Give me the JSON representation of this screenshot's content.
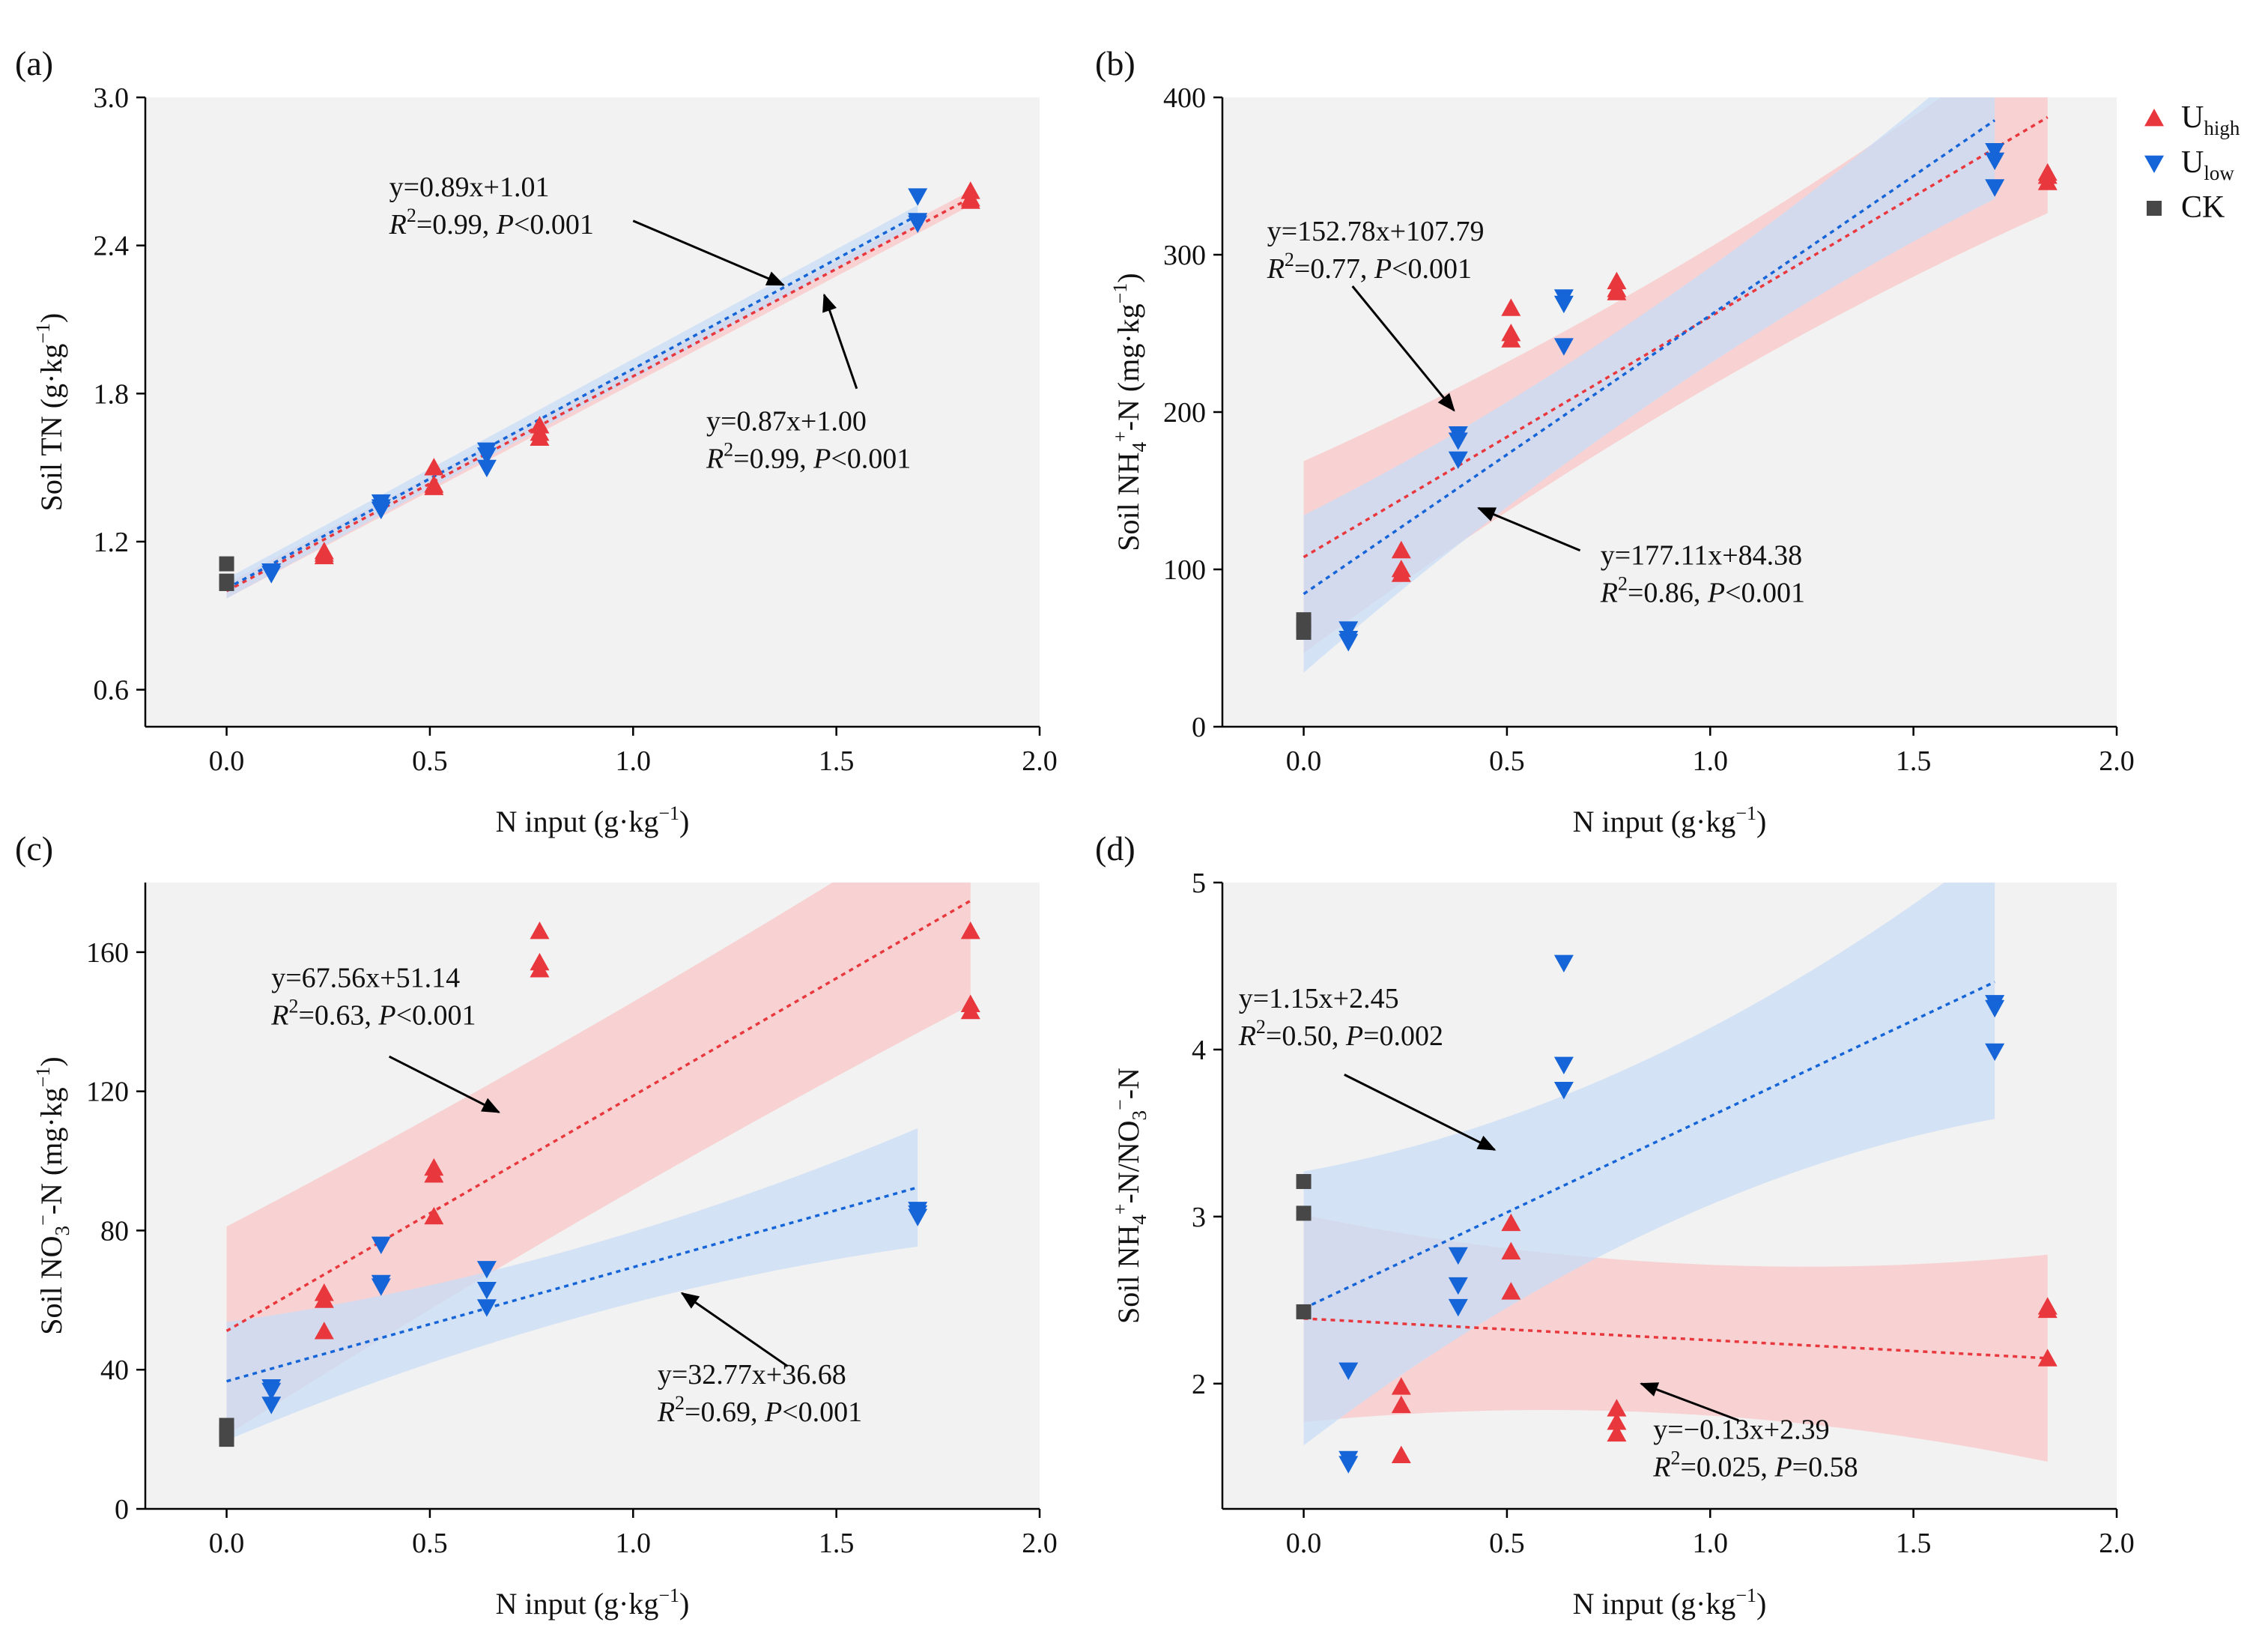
{
  "colors": {
    "u_high": "#e8383d",
    "u_low": "#1565d8",
    "ck": "#474747",
    "u_high_band": "#f9c7c7",
    "u_low_band": "#c8dcf6",
    "plot_bg": "#f2f2f2"
  },
  "legend": {
    "placement": "top-right",
    "u_high": "U",
    "u_high_sub": "high",
    "u_low": "U",
    "u_low_sub": "low",
    "ck": "CK"
  },
  "chart_data": [
    {
      "panel": "(a)",
      "type": "scatter",
      "xlabel": {
        "pre": "N input (g·kg",
        "sup": "−1",
        "post": ")"
      },
      "ylabel": {
        "pre": "Soil TN (g·kg",
        "sup": "−1",
        "post": ")"
      },
      "xlim": [
        -0.2,
        2.0
      ],
      "ylim": [
        0.45,
        3.0
      ],
      "xticks": [
        0,
        0.5,
        1,
        1.5,
        2
      ],
      "xtick_labels": [
        "0.0",
        "0.5",
        "1.0",
        "1.5",
        "2.0"
      ],
      "yticks": [
        0.6,
        1.2,
        1.8,
        2.4,
        3.0
      ],
      "ytick_labels": [
        "0.6",
        "1.2",
        "1.8",
        "2.4",
        "3.0"
      ],
      "series": [
        {
          "name": "U_high",
          "key": "u_high",
          "marker": "triangle-up",
          "x": [
            0.24,
            0.24,
            0.24,
            0.51,
            0.51,
            0.51,
            0.77,
            0.77,
            0.77,
            1.83,
            1.83,
            1.83
          ],
          "y": [
            1.14,
            1.16,
            1.15,
            1.5,
            1.43,
            1.42,
            1.67,
            1.62,
            1.64,
            2.59,
            2.62,
            2.58
          ]
        },
        {
          "name": "U_low",
          "key": "u_low",
          "marker": "triangle-down",
          "x": [
            0.11,
            0.11,
            0.11,
            0.38,
            0.38,
            0.38,
            0.64,
            0.64,
            0.64,
            1.7,
            1.7,
            1.7
          ],
          "y": [
            1.07,
            1.08,
            1.08,
            1.36,
            1.33,
            1.34,
            1.57,
            1.5,
            1.55,
            2.6,
            2.49,
            2.5
          ]
        },
        {
          "name": "CK",
          "key": "ck",
          "marker": "square",
          "x": [
            0,
            0,
            0
          ],
          "y": [
            1.11,
            1.04,
            1.03
          ]
        }
      ],
      "fits": [
        {
          "key": "u_high",
          "slope": 0.87,
          "intercept": 1.0,
          "x0": 0,
          "x1": 1.83,
          "band": [
            0.03,
            0.03
          ]
        },
        {
          "key": "u_low",
          "slope": 0.89,
          "intercept": 1.01,
          "x0": 0,
          "x1": 1.7,
          "band": [
            0.04,
            0.04
          ]
        }
      ],
      "annotations": [
        {
          "eq": "y=0.89x+1.01",
          "r2": "=0.99, ",
          "p": "<0.001",
          "tx": 0.4,
          "ty": 2.6,
          "ax": 1.37,
          "ay": 2.24,
          "from_x": 1.0,
          "from_y": 2.5
        },
        {
          "eq": "y=0.87x+1.00",
          "r2": "=0.99, ",
          "p": "<0.001",
          "tx": 1.18,
          "ty": 1.65,
          "ax": 1.47,
          "ay": 2.2,
          "from_x": 1.55,
          "from_y": 1.82
        }
      ]
    },
    {
      "panel": "(b)",
      "type": "scatter",
      "xlabel": {
        "pre": "N input (g·kg",
        "sup": "−1",
        "post": ")"
      },
      "ylabel": {
        "pre": "Soil NH",
        "sub": "4",
        "sup": "+",
        "post": "-N (mg·kg",
        "sup2": "−1",
        "post2": ")"
      },
      "xlim": [
        -0.2,
        2.0
      ],
      "ylim": [
        0,
        400
      ],
      "xticks": [
        0,
        0.5,
        1,
        1.5,
        2
      ],
      "xtick_labels": [
        "0.0",
        "0.5",
        "1.0",
        "1.5",
        "2.0"
      ],
      "yticks": [
        0,
        100,
        200,
        300,
        400
      ],
      "ytick_labels": [
        "0",
        "100",
        "200",
        "300",
        "400"
      ],
      "series": [
        {
          "name": "U_high",
          "key": "u_high",
          "marker": "triangle-up",
          "x": [
            0.24,
            0.24,
            0.24,
            0.51,
            0.51,
            0.51,
            0.77,
            0.77,
            0.77,
            1.83,
            1.83,
            1.83
          ],
          "y": [
            112,
            100,
            97,
            266,
            250,
            246,
            283,
            276,
            278,
            352,
            346,
            350
          ]
        },
        {
          "name": "U_low",
          "key": "u_low",
          "marker": "triangle-down",
          "x": [
            0.11,
            0.11,
            0.11,
            0.38,
            0.38,
            0.38,
            0.64,
            0.64,
            0.64,
            1.7,
            1.7,
            1.7
          ],
          "y": [
            62,
            56,
            54,
            186,
            182,
            170,
            273,
            269,
            242,
            366,
            360,
            343
          ]
        },
        {
          "name": "CK",
          "key": "ck",
          "marker": "square",
          "x": [
            0,
            0,
            0
          ],
          "y": [
            68,
            64,
            60
          ]
        }
      ],
      "fits": [
        {
          "key": "u_high",
          "slope": 152.78,
          "intercept": 107.79,
          "x0": 0,
          "x1": 1.83,
          "band": [
            44,
            61
          ]
        },
        {
          "key": "u_low",
          "slope": 177.11,
          "intercept": 84.38,
          "x0": 0,
          "x1": 1.7,
          "band": [
            30,
            50
          ]
        }
      ],
      "annotations": [
        {
          "eq": "y=152.78x+107.79",
          "r2": "=0.77, ",
          "p": "<0.001",
          "tx": -0.09,
          "ty": 309,
          "ax": 0.37,
          "ay": 201,
          "from_x": 0.12,
          "from_y": 280
        },
        {
          "eq": "y=177.11x+84.38",
          "r2": "=0.86, ",
          "p": "<0.001",
          "tx": 0.73,
          "ty": 103,
          "ax": 0.43,
          "ay": 139,
          "from_x": 0.68,
          "from_y": 112
        }
      ]
    },
    {
      "panel": "(c)",
      "type": "scatter",
      "xlabel": {
        "pre": "N input (g·kg",
        "sup": "−1",
        "post": ")"
      },
      "ylabel": {
        "pre": "Soil NO",
        "sub": "3",
        "sup": "−",
        "post": "-N (mg·kg",
        "sup2": "−1",
        "post2": ")"
      },
      "xlim": [
        -0.2,
        2.0
      ],
      "ylim": [
        0,
        180
      ],
      "xticks": [
        0,
        0.5,
        1,
        1.5,
        2
      ],
      "xtick_labels": [
        "0.0",
        "0.5",
        "1.0",
        "1.5",
        "2.0"
      ],
      "yticks": [
        0,
        40,
        80,
        120,
        160
      ],
      "ytick_labels": [
        "0",
        "40",
        "80",
        "120",
        "160"
      ],
      "series": [
        {
          "name": "U_high",
          "key": "u_high",
          "marker": "triangle-up",
          "x": [
            0.24,
            0.24,
            0.24,
            0.51,
            0.51,
            0.51,
            0.77,
            0.77,
            0.77,
            1.83,
            1.83,
            1.83
          ],
          "y": [
            62,
            60,
            51,
            98,
            96,
            84,
            166,
            157,
            155,
            166,
            145,
            143
          ]
        },
        {
          "name": "U_low",
          "key": "u_low",
          "marker": "triangle-down",
          "x": [
            0.11,
            0.11,
            0.11,
            0.38,
            0.38,
            0.38,
            0.64,
            0.64,
            0.64,
            1.7,
            1.7,
            1.7
          ],
          "y": [
            35,
            34,
            30,
            76,
            65,
            64,
            69,
            63,
            58,
            86,
            85,
            84
          ]
        },
        {
          "name": "CK",
          "key": "ck",
          "marker": "square",
          "x": [
            0,
            0,
            0
          ],
          "y": [
            24,
            22,
            20
          ]
        }
      ],
      "fits": [
        {
          "key": "u_high",
          "slope": 67.56,
          "intercept": 51.14,
          "x0": 0,
          "x1": 1.83,
          "band": [
            27,
            30
          ]
        },
        {
          "key": "u_low",
          "slope": 32.77,
          "intercept": 36.68,
          "x0": 0,
          "x1": 1.7,
          "band": [
            10,
            17
          ]
        }
      ],
      "annotations": [
        {
          "eq": "y=67.56x+51.14",
          "r2": "=0.63, ",
          "p": "<0.001",
          "tx": 0.11,
          "ty": 150,
          "ax": 0.67,
          "ay": 114,
          "from_x": 0.4,
          "from_y": 130
        },
        {
          "eq": "y=32.77x+36.68",
          "r2": "=0.69, ",
          "p": "<0.001",
          "tx": 1.06,
          "ty": 36,
          "ax": 1.12,
          "ay": 62,
          "from_x": 1.38,
          "from_y": 41
        }
      ]
    },
    {
      "panel": "(d)",
      "type": "scatter",
      "xlabel": {
        "pre": "N input (g·kg",
        "sup": "−1",
        "post": ")"
      },
      "ylabel": {
        "pre": "Soil NH",
        "sub": "4",
        "sup": "+",
        "post": "-N/NO",
        "sub2": "3",
        "sup2": "−",
        "post2": "-N"
      },
      "xlim": [
        -0.2,
        2.0
      ],
      "ylim": [
        1.25,
        5.0
      ],
      "xticks": [
        0,
        0.5,
        1,
        1.5,
        2
      ],
      "xtick_labels": [
        "0.0",
        "0.5",
        "1.0",
        "1.5",
        "2.0"
      ],
      "yticks": [
        2,
        3,
        4,
        5
      ],
      "ytick_labels": [
        "2",
        "3",
        "4",
        "5"
      ],
      "series": [
        {
          "name": "U_high",
          "key": "u_high",
          "marker": "triangle-up",
          "x": [
            0.24,
            0.24,
            0.24,
            0.51,
            0.51,
            0.51,
            0.77,
            0.77,
            0.77,
            1.83,
            1.83,
            1.83
          ],
          "y": [
            1.98,
            1.87,
            1.57,
            2.96,
            2.79,
            2.55,
            1.85,
            1.77,
            1.7,
            2.46,
            2.44,
            2.15
          ]
        },
        {
          "name": "U_low",
          "key": "u_low",
          "marker": "triangle-down",
          "x": [
            0.11,
            0.11,
            0.11,
            0.38,
            0.38,
            0.38,
            0.64,
            0.64,
            0.64,
            1.7,
            1.7,
            1.7
          ],
          "y": [
            2.08,
            1.55,
            1.52,
            2.77,
            2.59,
            2.46,
            4.52,
            3.91,
            3.76,
            4.28,
            4.25,
            3.99
          ]
        },
        {
          "name": "CK",
          "key": "ck",
          "marker": "square",
          "x": [
            0,
            0,
            0
          ],
          "y": [
            3.21,
            3.02,
            2.43
          ]
        }
      ],
      "fits": [
        {
          "key": "u_high",
          "slope": -0.13,
          "intercept": 2.39,
          "x0": 0,
          "x1": 1.83,
          "band": [
            0.45,
            0.62
          ]
        },
        {
          "key": "u_low",
          "slope": 1.15,
          "intercept": 2.45,
          "x0": 0,
          "x1": 1.7,
          "band": [
            0.52,
            0.82
          ]
        }
      ],
      "annotations": [
        {
          "eq": "y=1.15x+2.45",
          "r2": "=0.50, ",
          "p": "=0.002",
          "tx": -0.16,
          "ty": 4.25,
          "ax": 0.47,
          "ay": 3.4,
          "from_x": 0.1,
          "from_y": 3.85
        },
        {
          "eq": "y=−0.13x+2.39",
          "r2": "=0.025, ",
          "p": "=0.58",
          "tx": 0.86,
          "ty": 1.67,
          "ax": 0.83,
          "ay": 2.0,
          "from_x": 1.07,
          "from_y": 1.78
        }
      ]
    }
  ]
}
